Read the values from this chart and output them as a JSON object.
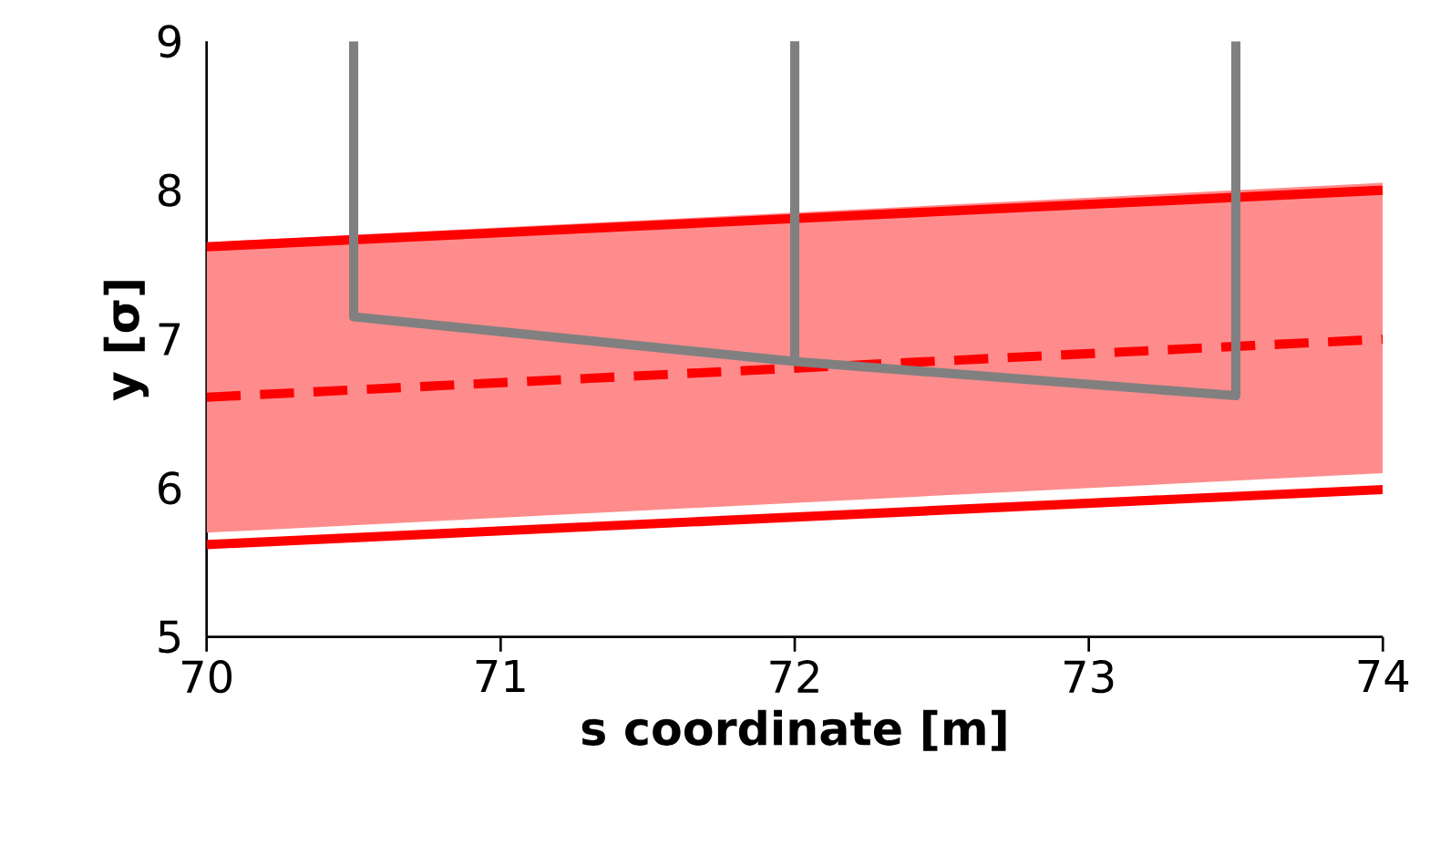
{
  "chart_data": {
    "type": "line",
    "xlabel": "s coordinate [m]",
    "ylabel": "y [σ]",
    "x": [
      70,
      74
    ],
    "series": [
      {
        "color": "#ff0000",
        "values": [
          7.62,
          8.0
        ]
      },
      {
        "color": "#ff0000",
        "values": [
          5.62,
          5.99
        ]
      },
      {
        "color": "#ff0000",
        "values": [
          6.61,
          7.0
        ],
        "line_style": "dashed",
        "lower": [
          5.7,
          6.1
        ],
        "upper": [
          7.65,
          8.05
        ]
      },
      {
        "color": "#808080",
        "x": [
          70.5,
          70.5,
          72,
          72,
          72,
          73.5,
          73.5
        ],
        "values": [
          9,
          7.15,
          6.85,
          9,
          6.85,
          6.62,
          9
        ]
      }
    ],
    "xlim": [
      70,
      74
    ],
    "ylim": [
      5,
      9
    ],
    "xticks": [
      70,
      71,
      72,
      73,
      74
    ],
    "yticks": [
      5,
      6,
      7,
      8,
      9
    ],
    "grid": false,
    "marker": "none",
    "line_style": "solid"
  }
}
